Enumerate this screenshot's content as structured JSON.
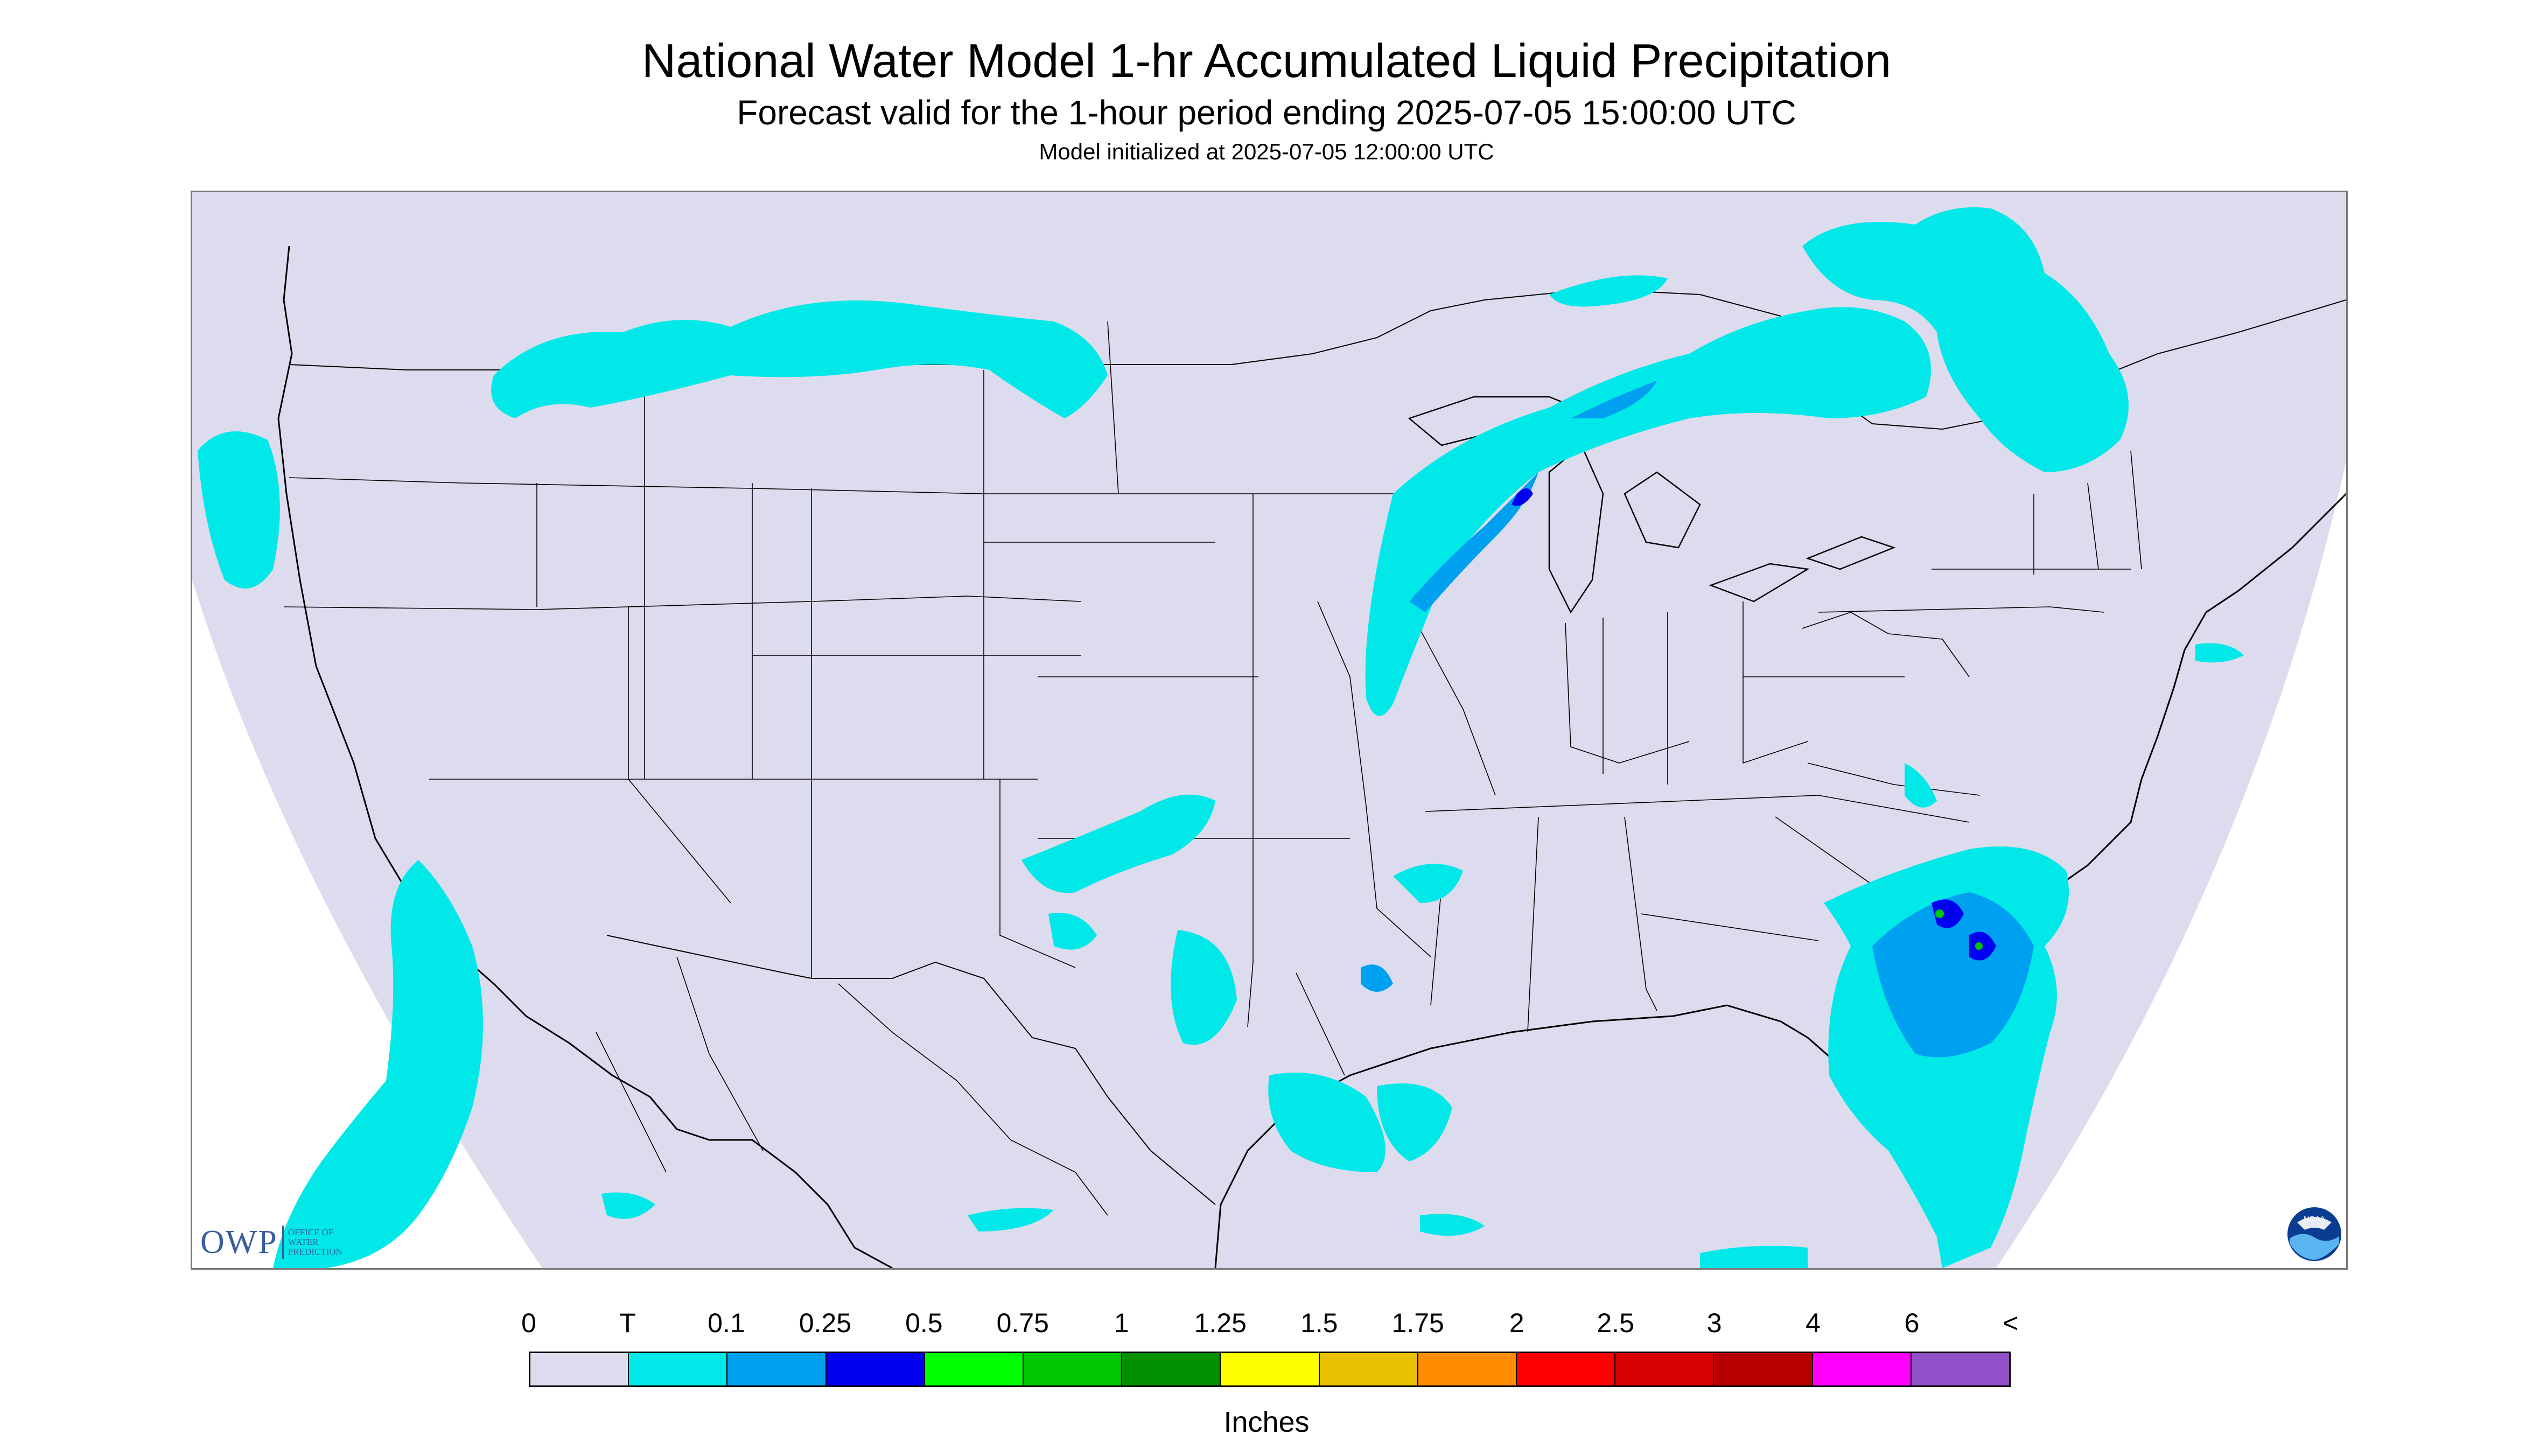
{
  "header": {
    "title": "National Water Model 1-hr Accumulated Liquid Precipitation",
    "subtitle": "Forecast valid for the 1-hour period ending 2025-07-05 15:00:00 UTC",
    "init_line": "Model initialized at 2025-07-05 12:00:00 UTC"
  },
  "logos": {
    "owp_text": "OWP",
    "owp_subtitle_1": "OFFICE OF",
    "owp_subtitle_2": "WATER",
    "owp_subtitle_3": "PREDICTION",
    "noaa_text": "NOAA"
  },
  "legend": {
    "labels": [
      "0",
      "T",
      "0.1",
      "0.25",
      "0.5",
      "0.75",
      "1",
      "1.25",
      "1.5",
      "1.75",
      "2",
      "2.5",
      "3",
      "4",
      "6",
      "<"
    ],
    "colors": [
      "#dcdcee",
      "#00e8e8",
      "#00a0f0",
      "#0000f0",
      "#00ff00",
      "#00c800",
      "#009000",
      "#ffff00",
      "#e8c000",
      "#ff8c00",
      "#ff0000",
      "#d80000",
      "#b80000",
      "#ff00ff",
      "#9050c8"
    ],
    "units": "Inches"
  },
  "map": {
    "domain_fill": "#dcdcee",
    "outside_fill": "#ffffff",
    "boundary_color": "#000000",
    "precip_light": "#00e8e8",
    "precip_medium": "#00a0f0",
    "precip_heavy": "#0000f0"
  }
}
